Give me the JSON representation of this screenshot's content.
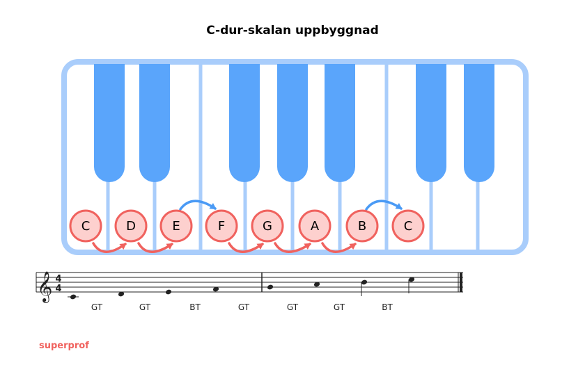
{
  "title": "C-dur-skalan uppbyggnad",
  "colors": {
    "keyboard_frame": "#a9cdfb",
    "black_key": "#5aa5fb",
    "note_fill": "#fdd0ce",
    "note_stroke": "#f0625e",
    "half_step_arrow": "#4a9af5",
    "whole_step_arrow": "#f0625e",
    "brand": "#f0625e"
  },
  "keyboard": {
    "white_key_count": 10,
    "black_key_count": 7
  },
  "notes": [
    "C",
    "D",
    "E",
    "F",
    "G",
    "A",
    "B",
    "C"
  ],
  "step_types": [
    "whole",
    "whole",
    "half",
    "whole",
    "whole",
    "whole",
    "half"
  ],
  "interval_labels": [
    "GT",
    "GT",
    "BT",
    "GT",
    "GT",
    "GT",
    "BT"
  ],
  "staff": {
    "clef": "treble-clef",
    "time_signature": [
      "4",
      "4"
    ],
    "notes": [
      "C4",
      "D4",
      "E4",
      "F4",
      "G4",
      "A4",
      "B4",
      "C5"
    ]
  },
  "brand": "superprof"
}
